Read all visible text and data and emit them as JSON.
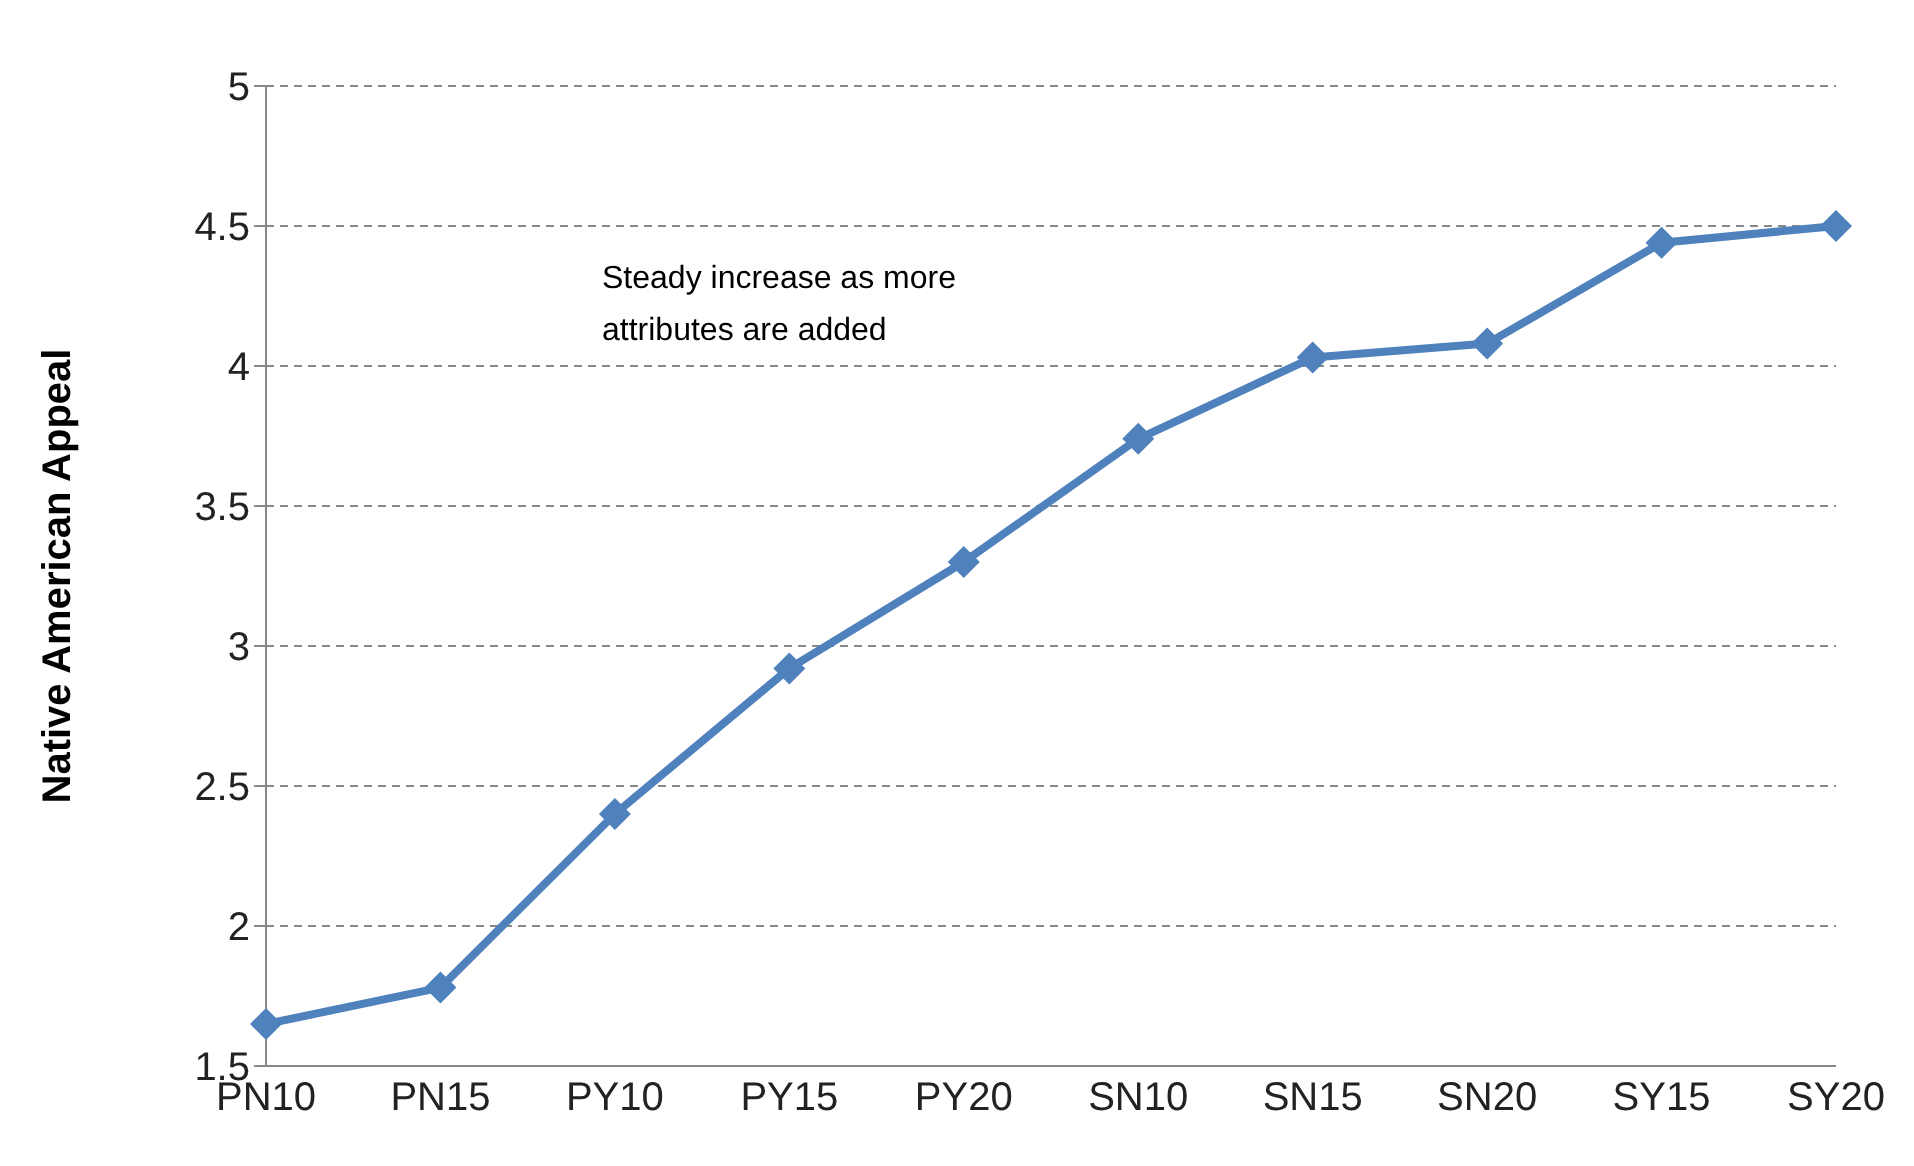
{
  "chart_data": {
    "type": "line",
    "ylabel": "Native American Appeal",
    "categories": [
      "PN10",
      "PN15",
      "PY10",
      "PY15",
      "PY20",
      "SN10",
      "SN15",
      "SN20",
      "SY15",
      "SY20"
    ],
    "series": [
      {
        "color": "#4f81bd",
        "values": [
          1.65,
          1.78,
          2.4,
          2.92,
          3.3,
          3.74,
          4.03,
          4.08,
          4.44,
          4.5
        ]
      }
    ],
    "ylim": [
      1.5,
      5
    ],
    "yticks": [
      1.5,
      2,
      2.5,
      3,
      3.5,
      4,
      4.5,
      5
    ],
    "grid": "y",
    "marker": "diamond",
    "line_style": "solid",
    "legend": false,
    "annotations": [
      "Steady increase as more attributes are added"
    ]
  }
}
